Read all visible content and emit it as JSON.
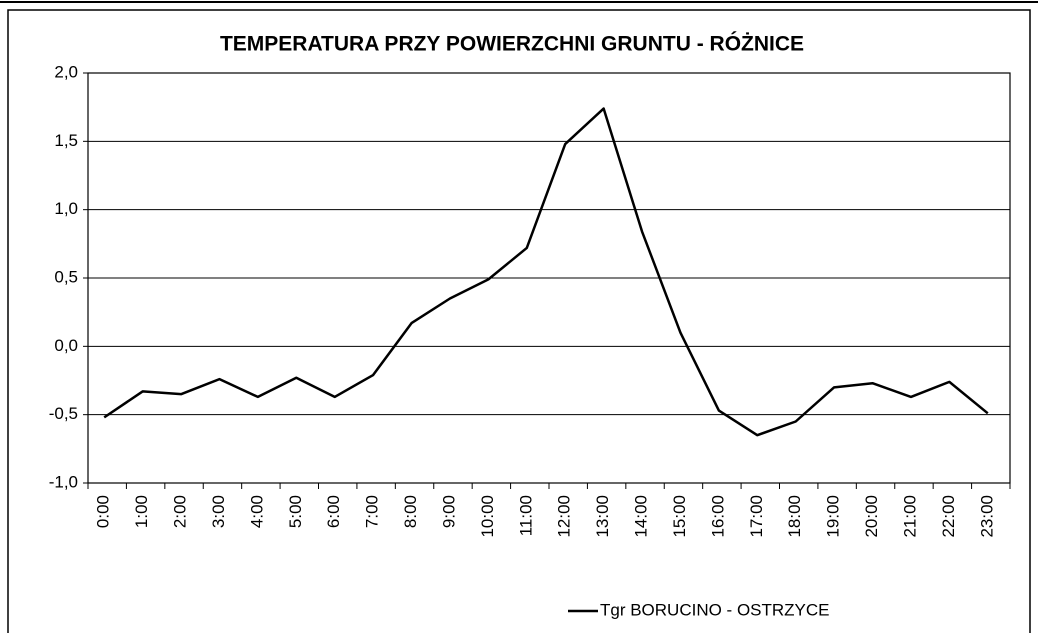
{
  "chart_data": {
    "type": "line",
    "title": "TEMPERATURA PRZY POWIERZCHNI GRUNTU - RÓŻNICE",
    "categories": [
      "0:00",
      "1:00",
      "2:00",
      "3:00",
      "4:00",
      "5:00",
      "6:00",
      "7:00",
      "8:00",
      "9:00",
      "10:00",
      "11:00",
      "12:00",
      "13:00",
      "14:00",
      "15:00",
      "16:00",
      "17:00",
      "18:00",
      "19:00",
      "20:00",
      "21:00",
      "22:00",
      "23:00"
    ],
    "series": [
      {
        "name": "Tgr BORUCINO - OSTRZYCE",
        "color": "#000000",
        "values": [
          -0.52,
          -0.33,
          -0.35,
          -0.24,
          -0.37,
          -0.23,
          -0.37,
          -0.21,
          0.17,
          0.35,
          0.49,
          0.72,
          1.48,
          1.74,
          0.84,
          0.1,
          -0.47,
          -0.65,
          -0.55,
          -0.3,
          -0.27,
          -0.37,
          -0.26,
          -0.49
        ]
      }
    ],
    "ylim": [
      -1,
      2
    ],
    "yticks": [
      {
        "value": -1,
        "label": "-1,0"
      },
      {
        "value": -0.5,
        "label": "-0,5"
      },
      {
        "value": 0,
        "label": "0,0"
      },
      {
        "value": 0.5,
        "label": "0,5"
      },
      {
        "value": 1,
        "label": "1,0"
      },
      {
        "value": 1.5,
        "label": "1,5"
      },
      {
        "value": 2,
        "label": "2,0"
      }
    ],
    "grid": true,
    "legend": "bottom"
  }
}
